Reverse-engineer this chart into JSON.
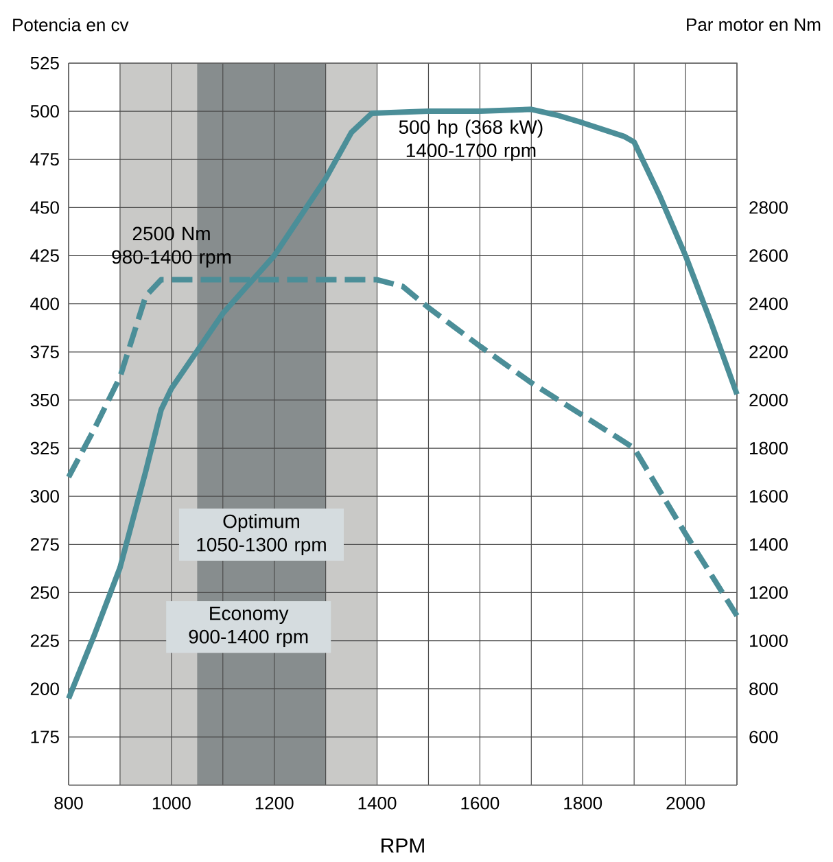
{
  "chart_data": {
    "type": "line",
    "xlabel": "RPM",
    "ylabel": "Potencia en cv",
    "y2label": "Par motor en Nm",
    "series": [
      {
        "type": "line",
        "color": "#4b8e98",
        "line_style": "solid",
        "x": [
          800,
          850,
          900,
          950,
          980,
          1000,
          1100,
          1200,
          1300,
          1350,
          1390,
          1500,
          1600,
          1700,
          1750,
          1800,
          1880,
          1900,
          1950,
          2000,
          2050,
          2100
        ],
        "values": [
          195,
          228,
          263,
          313,
          345,
          356,
          395,
          425,
          465,
          489,
          499,
          500,
          500,
          501,
          498,
          494,
          487,
          484,
          456,
          425,
          390,
          353
        ]
      },
      {
        "type": "line",
        "color": "#4b8e98",
        "line_style": "dashed",
        "axis": "y2",
        "x": [
          800,
          850,
          900,
          950,
          980,
          1000,
          1100,
          1200,
          1300,
          1400,
          1450,
          1500,
          1600,
          1700,
          1800,
          1900,
          2000,
          2100
        ],
        "values": [
          1680,
          1880,
          2096,
          2432,
          2500,
          2500,
          2500,
          2500,
          2500,
          2500,
          2472,
          2384,
          2224,
          2072,
          1936,
          1800,
          1444,
          1104
        ]
      }
    ],
    "xlim": [
      800,
      2100
    ],
    "xticks": [
      800,
      {
        "value": 900,
        "label": null
      },
      1000,
      {
        "value": 1100,
        "label": null
      },
      1200,
      {
        "value": 1300,
        "label": null
      },
      1400,
      {
        "value": 1500,
        "label": null
      },
      1600,
      {
        "value": 1700,
        "label": null
      },
      1800,
      {
        "value": 1900,
        "label": null
      },
      2000,
      {
        "value": 2100,
        "label": null
      }
    ],
    "ylim": [
      150,
      525
    ],
    "yticks": [
      175,
      200,
      225,
      250,
      275,
      300,
      325,
      350,
      375,
      400,
      425,
      450,
      475,
      500,
      525
    ],
    "y2lim": [
      400,
      3400
    ],
    "y2ticks": [
      600,
      800,
      1000,
      1200,
      1400,
      1600,
      1800,
      2000,
      2200,
      2400,
      2600,
      2800
    ],
    "bands": [
      {
        "axis": "x",
        "from": 900,
        "to": 1400,
        "label": "Economy 900-1400 rpm",
        "color": "#c9c9c7"
      },
      {
        "axis": "x",
        "from": 1050,
        "to": 1300,
        "label": "Optimum 1050-1300 rpm",
        "color": "#878d8e"
      }
    ],
    "annotations": [
      "2500 Nm 980-1400 rpm",
      "500 hp (368 kW) 1400-1700 rpm"
    ],
    "grid": true
  }
}
